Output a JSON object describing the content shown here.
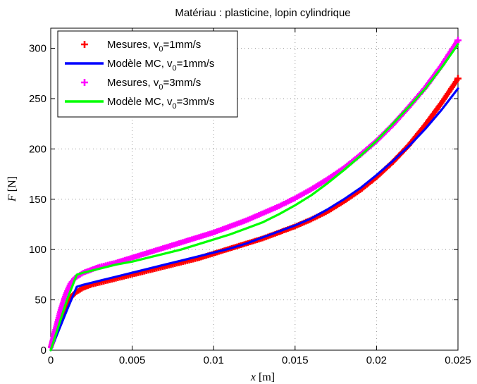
{
  "chart_data": {
    "type": "line",
    "title": "Matériau : plasticine, lopin cylindrique",
    "xlabel": {
      "var": "x",
      "unit": "[m]"
    },
    "ylabel": {
      "var": "F",
      "unit": "[N]"
    },
    "xlim": [
      0,
      0.025
    ],
    "ylim": [
      0,
      320
    ],
    "xticks": [
      0,
      0.005,
      0.01,
      0.015,
      0.02,
      0.025
    ],
    "xtick_labels": [
      "0",
      "0.005",
      "0.01",
      "0.015",
      "0.02",
      "0.025"
    ],
    "yticks": [
      0,
      50,
      100,
      150,
      200,
      250,
      300
    ],
    "ytick_labels": [
      "0",
      "50",
      "100",
      "150",
      "200",
      "250",
      "300"
    ],
    "grid": true,
    "legend_position": "top-left",
    "series": [
      {
        "name": {
          "base": "Mesures, v",
          "sub": "0",
          "tail": "=1mm/s"
        },
        "style": "markers",
        "marker": "+",
        "color": "#ff0000",
        "x": [
          0,
          0.0003,
          0.0006,
          0.0009,
          0.0012,
          0.0015,
          0.002,
          0.0025,
          0.003,
          0.0035,
          0.004,
          0.005,
          0.006,
          0.007,
          0.008,
          0.009,
          0.01,
          0.011,
          0.012,
          0.013,
          0.014,
          0.015,
          0.016,
          0.017,
          0.018,
          0.019,
          0.02,
          0.021,
          0.022,
          0.023,
          0.024,
          0.025
        ],
        "y": [
          3,
          18,
          32,
          44,
          52,
          57,
          62,
          65,
          67,
          69,
          71,
          75,
          79,
          83,
          87,
          91,
          96,
          101,
          106,
          111,
          117,
          123,
          130,
          138,
          148,
          159,
          172,
          187,
          204,
          224,
          246,
          270
        ]
      },
      {
        "name": {
          "base": "Modèle MC, v",
          "sub": "0",
          "tail": "=1mm/s"
        },
        "style": "line",
        "color": "#0000ff",
        "x": [
          0,
          0.0005,
          0.001,
          0.0016,
          0.002,
          0.003,
          0.004,
          0.005,
          0.006,
          0.007,
          0.008,
          0.009,
          0.01,
          0.011,
          0.012,
          0.013,
          0.014,
          0.015,
          0.016,
          0.017,
          0.018,
          0.019,
          0.02,
          0.021,
          0.022,
          0.023,
          0.024,
          0.025
        ],
        "y": [
          0,
          20,
          40,
          63,
          65,
          69,
          73,
          77,
          81,
          85,
          89,
          93,
          97,
          101,
          106,
          112,
          118,
          124,
          131,
          140,
          150,
          161,
          174,
          188,
          203,
          220,
          239,
          260
        ]
      },
      {
        "name": {
          "base": "Mesures, v",
          "sub": "0",
          "tail": "=3mm/s"
        },
        "style": "markers",
        "marker": "+",
        "color": "#ff00ff",
        "x": [
          0,
          0.0003,
          0.0006,
          0.0009,
          0.0012,
          0.0015,
          0.002,
          0.0025,
          0.003,
          0.0035,
          0.004,
          0.005,
          0.006,
          0.007,
          0.008,
          0.009,
          0.01,
          0.011,
          0.012,
          0.013,
          0.014,
          0.015,
          0.016,
          0.017,
          0.018,
          0.019,
          0.02,
          0.021,
          0.022,
          0.023,
          0.024,
          0.025
        ],
        "y": [
          3,
          22,
          40,
          55,
          66,
          72,
          77,
          80,
          83,
          85,
          87,
          92,
          97,
          102,
          107,
          112,
          117,
          123,
          129,
          136,
          143,
          151,
          160,
          170,
          181,
          194,
          208,
          224,
          242,
          261,
          283,
          308
        ]
      },
      {
        "name": {
          "base": "Modèle MC, v",
          "sub": "0",
          "tail": "=3mm/s"
        },
        "style": "line",
        "color": "#00ff00",
        "x": [
          0,
          0.0005,
          0.001,
          0.0016,
          0.002,
          0.003,
          0.004,
          0.005,
          0.006,
          0.007,
          0.008,
          0.009,
          0.01,
          0.011,
          0.012,
          0.013,
          0.014,
          0.015,
          0.016,
          0.017,
          0.018,
          0.019,
          0.02,
          0.021,
          0.022,
          0.023,
          0.024,
          0.025
        ],
        "y": [
          0,
          25,
          50,
          75,
          77,
          81,
          85,
          88,
          92,
          96,
          100,
          105,
          110,
          115,
          121,
          127,
          135,
          144,
          154,
          166,
          179,
          193,
          208,
          225,
          242,
          260,
          281,
          304
        ]
      }
    ]
  }
}
